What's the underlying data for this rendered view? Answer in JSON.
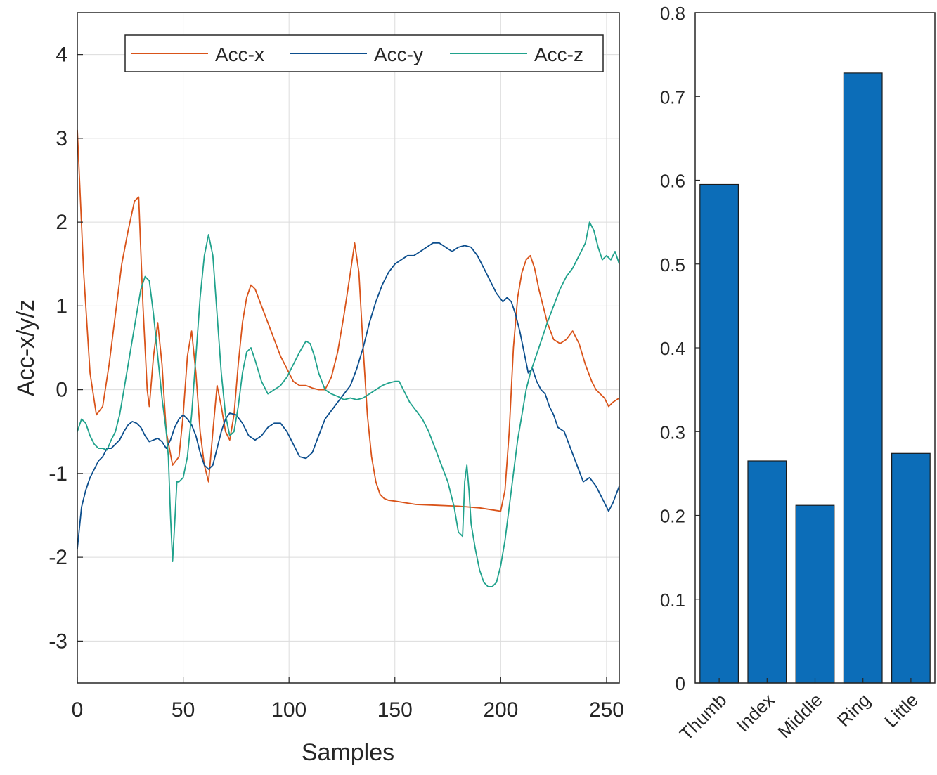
{
  "chart_data": [
    {
      "type": "line",
      "xlabel": "Samples",
      "ylabel": "Acc-x/y/z",
      "xlim": [
        0,
        256
      ],
      "ylim": [
        -3.5,
        4.5
      ],
      "xticks": [
        0,
        50,
        100,
        150,
        200,
        250
      ],
      "yticks": [
        -3,
        -2,
        -1,
        0,
        1,
        2,
        3,
        4
      ],
      "grid": true,
      "legend_position": "top",
      "legend_orientation": "horizontal",
      "series": [
        {
          "name": "Acc-x",
          "color": "#D95319",
          "x": [
            0,
            3,
            6,
            9,
            12,
            15,
            18,
            21,
            24,
            27,
            29,
            31,
            33,
            34,
            36,
            38,
            40,
            42,
            45,
            48,
            50,
            52,
            54,
            56,
            58,
            60,
            62,
            64,
            66,
            68,
            70,
            72,
            74,
            76,
            78,
            80,
            82,
            84,
            87,
            90,
            93,
            96,
            99,
            102,
            105,
            108,
            111,
            114,
            117,
            120,
            123,
            126,
            129,
            131,
            133,
            135,
            137,
            139,
            141,
            143,
            145,
            147,
            150,
            155,
            160,
            170,
            180,
            185,
            190,
            195,
            200,
            202,
            204,
            206,
            208,
            210,
            212,
            214,
            216,
            218,
            220,
            222,
            225,
            228,
            231,
            234,
            237,
            240,
            243,
            245,
            247,
            249,
            251,
            253,
            256
          ],
          "y": [
            3.1,
            1.4,
            0.2,
            -0.3,
            -0.2,
            0.3,
            0.9,
            1.5,
            1.9,
            2.25,
            2.3,
            1.0,
            0.0,
            -0.2,
            0.4,
            0.8,
            0.3,
            -0.5,
            -0.9,
            -0.8,
            -0.3,
            0.4,
            0.7,
            0.2,
            -0.5,
            -0.9,
            -1.1,
            -0.5,
            0.05,
            -0.2,
            -0.5,
            -0.6,
            -0.3,
            0.3,
            0.8,
            1.1,
            1.25,
            1.2,
            1.0,
            0.8,
            0.6,
            0.4,
            0.25,
            0.1,
            0.05,
            0.05,
            0.02,
            0.0,
            0.0,
            0.15,
            0.45,
            0.9,
            1.4,
            1.75,
            1.4,
            0.5,
            -0.3,
            -0.8,
            -1.1,
            -1.25,
            -1.3,
            -1.32,
            -1.33,
            -1.35,
            -1.37,
            -1.38,
            -1.39,
            -1.4,
            -1.41,
            -1.43,
            -1.45,
            -1.2,
            -0.5,
            0.5,
            1.1,
            1.4,
            1.55,
            1.6,
            1.45,
            1.2,
            1.0,
            0.8,
            0.6,
            0.55,
            0.6,
            0.7,
            0.55,
            0.3,
            0.1,
            0.0,
            -0.05,
            -0.1,
            -0.2,
            -0.15,
            -0.1
          ]
        },
        {
          "name": "Acc-y",
          "color": "#0C4E8D",
          "x": [
            0,
            2,
            4,
            6,
            8,
            10,
            12,
            14,
            16,
            18,
            20,
            22,
            24,
            26,
            28,
            30,
            32,
            34,
            36,
            38,
            40,
            42,
            44,
            46,
            48,
            50,
            52,
            54,
            56,
            58,
            60,
            62,
            64,
            66,
            68,
            70,
            72,
            75,
            78,
            81,
            84,
            87,
            90,
            93,
            96,
            99,
            102,
            105,
            108,
            111,
            114,
            117,
            120,
            123,
            126,
            129,
            132,
            135,
            138,
            141,
            144,
            147,
            150,
            153,
            156,
            159,
            162,
            165,
            168,
            171,
            174,
            177,
            180,
            183,
            186,
            189,
            192,
            195,
            198,
            201,
            203,
            205,
            207,
            209,
            211,
            213,
            215,
            217,
            219,
            221,
            223,
            225,
            227,
            230,
            233,
            236,
            239,
            242,
            245,
            248,
            251,
            253,
            256
          ],
          "y": [
            -1.9,
            -1.4,
            -1.2,
            -1.05,
            -0.95,
            -0.85,
            -0.8,
            -0.7,
            -0.7,
            -0.65,
            -0.6,
            -0.5,
            -0.42,
            -0.38,
            -0.4,
            -0.45,
            -0.55,
            -0.62,
            -0.6,
            -0.58,
            -0.62,
            -0.7,
            -0.6,
            -0.45,
            -0.35,
            -0.3,
            -0.35,
            -0.42,
            -0.55,
            -0.75,
            -0.9,
            -0.95,
            -0.9,
            -0.7,
            -0.5,
            -0.35,
            -0.28,
            -0.3,
            -0.4,
            -0.55,
            -0.6,
            -0.55,
            -0.45,
            -0.4,
            -0.4,
            -0.5,
            -0.65,
            -0.8,
            -0.82,
            -0.75,
            -0.55,
            -0.35,
            -0.25,
            -0.15,
            -0.05,
            0.05,
            0.25,
            0.5,
            0.8,
            1.05,
            1.25,
            1.4,
            1.5,
            1.55,
            1.6,
            1.6,
            1.65,
            1.7,
            1.75,
            1.75,
            1.7,
            1.65,
            1.7,
            1.72,
            1.7,
            1.6,
            1.45,
            1.3,
            1.15,
            1.05,
            1.1,
            1.05,
            0.9,
            0.7,
            0.45,
            0.2,
            0.25,
            0.1,
            0.0,
            -0.05,
            -0.2,
            -0.3,
            -0.45,
            -0.5,
            -0.7,
            -0.9,
            -1.1,
            -1.05,
            -1.15,
            -1.3,
            -1.45,
            -1.35,
            -1.15
          ]
        },
        {
          "name": "Acc-z",
          "color": "#20A28C",
          "x": [
            0,
            2,
            4,
            6,
            8,
            10,
            12,
            14,
            16,
            18,
            20,
            22,
            24,
            26,
            28,
            30,
            32,
            34,
            36,
            38,
            40,
            42,
            43,
            44,
            45,
            46,
            47,
            48,
            50,
            52,
            54,
            56,
            58,
            60,
            62,
            64,
            66,
            68,
            70,
            72,
            74,
            76,
            78,
            80,
            82,
            84,
            87,
            90,
            93,
            96,
            99,
            102,
            105,
            108,
            110,
            112,
            114,
            117,
            120,
            123,
            126,
            129,
            132,
            135,
            138,
            141,
            144,
            147,
            150,
            152,
            154,
            157,
            160,
            163,
            166,
            169,
            172,
            175,
            178,
            180,
            182,
            183,
            184,
            185,
            186,
            188,
            190,
            192,
            194,
            196,
            198,
            200,
            202,
            204,
            206,
            208,
            210,
            212,
            214,
            216,
            218,
            220,
            222,
            225,
            228,
            231,
            234,
            237,
            240,
            242,
            244,
            246,
            248,
            250,
            252,
            254,
            256
          ],
          "y": [
            -0.5,
            -0.35,
            -0.4,
            -0.55,
            -0.65,
            -0.7,
            -0.7,
            -0.72,
            -0.6,
            -0.5,
            -0.3,
            0.0,
            0.3,
            0.6,
            0.9,
            1.2,
            1.35,
            1.3,
            0.9,
            0.4,
            -0.1,
            -0.5,
            -0.8,
            -1.5,
            -2.05,
            -1.6,
            -1.1,
            -1.1,
            -1.05,
            -0.8,
            -0.3,
            0.4,
            1.1,
            1.6,
            1.85,
            1.6,
            0.9,
            0.2,
            -0.3,
            -0.55,
            -0.5,
            -0.2,
            0.2,
            0.45,
            0.5,
            0.35,
            0.1,
            -0.05,
            0.0,
            0.05,
            0.15,
            0.3,
            0.45,
            0.58,
            0.55,
            0.4,
            0.2,
            0.0,
            -0.05,
            -0.08,
            -0.12,
            -0.1,
            -0.12,
            -0.1,
            -0.05,
            0.0,
            0.05,
            0.08,
            0.1,
            0.1,
            0.0,
            -0.15,
            -0.25,
            -0.35,
            -0.5,
            -0.7,
            -0.9,
            -1.1,
            -1.4,
            -1.7,
            -1.75,
            -1.1,
            -0.9,
            -1.2,
            -1.6,
            -1.9,
            -2.15,
            -2.3,
            -2.35,
            -2.35,
            -2.3,
            -2.1,
            -1.8,
            -1.4,
            -1.0,
            -0.6,
            -0.3,
            0.0,
            0.2,
            0.35,
            0.5,
            0.65,
            0.8,
            1.0,
            1.2,
            1.35,
            1.45,
            1.6,
            1.75,
            2.0,
            1.9,
            1.7,
            1.55,
            1.6,
            1.55,
            1.65,
            1.5
          ]
        }
      ]
    },
    {
      "type": "bar",
      "categories": [
        "Thumb",
        "Index",
        "Middle",
        "Ring",
        "Little"
      ],
      "values": [
        0.595,
        0.265,
        0.212,
        0.728,
        0.274
      ],
      "ylim": [
        0,
        0.8
      ],
      "yticks": [
        0,
        0.1,
        0.2,
        0.3,
        0.4,
        0.5,
        0.6,
        0.7,
        0.8
      ],
      "yticklabels": [
        "0",
        "0.1",
        "0.2",
        "0.3",
        "0.4",
        "0.5",
        "0.6",
        "0.7",
        "0.8"
      ],
      "bar_color": "#0C6DB8",
      "grid": false
    }
  ]
}
